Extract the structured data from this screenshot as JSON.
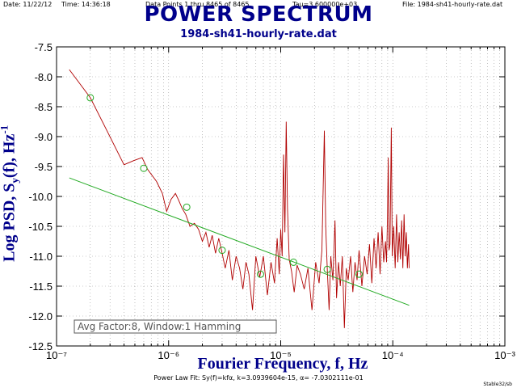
{
  "header": {
    "date": "Date: 11/22/12",
    "time": "Time: 14:36:18",
    "points": "Data Points 1 thru 8465 of 8465",
    "tau": "Tau=3.600000e+03",
    "file": "File: 1984-sh41-hourly-rate.dat"
  },
  "footer": {
    "power_law": "Power Law Fit: Sy(f)=kfα, k=3.0939604e-15, α= -7.0302111e-01",
    "credit": "Stable32/sb"
  },
  "colors": {
    "spectrum": "#b00000",
    "fit": "#22aa22",
    "markers": "#22aa22",
    "titles": "#00008b"
  },
  "chart_data": {
    "type": "line",
    "title": "POWER SPECTRUM",
    "subtitle": "1984-sh41-hourly-rate.dat",
    "xlabel": "Fourier Frequency, f, Hz",
    "ylabel_parts": {
      "main": "Log PSD, S",
      "sub": "y",
      "mid": "(f), Hz",
      "sup": "-1"
    },
    "x_scale": "log",
    "xlim": [
      1e-07,
      0.001
    ],
    "ylim": [
      -12.5,
      -7.5
    ],
    "x_tick_labels": [
      "10⁻⁷",
      "10⁻⁶",
      "10⁻⁵",
      "10⁻⁴",
      "10⁻³"
    ],
    "y_tick_labels": [
      "-7.5",
      "-8.0",
      "-8.5",
      "-9.0",
      "-9.5",
      "-10.0",
      "-10.5",
      "-11.0",
      "-11.5",
      "-12.0",
      "-12.5"
    ],
    "grid": true,
    "annotation": "Avg Factor:8, Window:1 Hamming",
    "series": [
      {
        "kind": "spectrum",
        "points": [
          [
            1.3e-07,
            -7.88
          ],
          [
            2e-07,
            -8.35
          ],
          [
            2.9e-07,
            -8.95
          ],
          [
            4e-07,
            -9.47
          ],
          [
            4.9e-07,
            -9.4
          ],
          [
            5.8e-07,
            -9.35
          ],
          [
            6.5e-07,
            -9.55
          ],
          [
            7.8e-07,
            -9.75
          ],
          [
            8.8e-07,
            -9.95
          ],
          [
            9.6e-07,
            -10.25
          ],
          [
            1.05e-06,
            -10.05
          ],
          [
            1.15e-06,
            -9.95
          ],
          [
            1.22e-06,
            -10.05
          ],
          [
            1.32e-06,
            -10.2
          ],
          [
            1.42e-06,
            -10.3
          ],
          [
            1.55e-06,
            -10.5
          ],
          [
            1.7e-06,
            -10.45
          ],
          [
            1.85e-06,
            -10.55
          ],
          [
            2e-06,
            -10.75
          ],
          [
            2.15e-06,
            -10.6
          ],
          [
            2.3e-06,
            -10.85
          ],
          [
            2.45e-06,
            -10.65
          ],
          [
            2.62e-06,
            -10.95
          ],
          [
            2.8e-06,
            -10.7
          ],
          [
            3e-06,
            -10.95
          ],
          [
            3.2e-06,
            -11.2
          ],
          [
            3.45e-06,
            -10.9
          ],
          [
            3.7e-06,
            -11.4
          ],
          [
            4e-06,
            -11.0
          ],
          [
            4.3e-06,
            -11.2
          ],
          [
            4.6e-06,
            -11.55
          ],
          [
            4.9e-06,
            -11.1
          ],
          [
            5.2e-06,
            -11.3
          ],
          [
            5.6e-06,
            -11.9
          ],
          [
            6e-06,
            -11.0
          ],
          [
            6.5e-06,
            -11.35
          ],
          [
            7e-06,
            -11.0
          ],
          [
            7.6e-06,
            -11.65
          ],
          [
            8.2e-06,
            -11.1
          ],
          [
            8.8e-06,
            -11.45
          ],
          [
            9.3e-06,
            -10.7
          ],
          [
            9.7e-06,
            -11.3
          ],
          [
            1e-05,
            -10.55
          ],
          [
            1.03e-05,
            -11.0
          ],
          [
            1.06e-05,
            -9.3
          ],
          [
            1.09e-05,
            -10.6
          ],
          [
            1.12e-05,
            -8.75
          ],
          [
            1.15e-05,
            -10.2
          ],
          [
            1.19e-05,
            -11.05
          ],
          [
            1.25e-05,
            -11.25
          ],
          [
            1.32e-05,
            -11.6
          ],
          [
            1.4e-05,
            -11.15
          ],
          [
            1.5e-05,
            -11.3
          ],
          [
            1.62e-05,
            -11.55
          ],
          [
            1.75e-05,
            -11.2
          ],
          [
            1.9e-05,
            -11.9
          ],
          [
            2.05e-05,
            -11.1
          ],
          [
            2.2e-05,
            -11.45
          ],
          [
            2.33e-05,
            -10.9
          ],
          [
            2.45e-05,
            -8.9
          ],
          [
            2.52e-05,
            -10.5
          ],
          [
            2.6e-05,
            -11.2
          ],
          [
            2.7e-05,
            -11.9
          ],
          [
            2.8e-05,
            -11.0
          ],
          [
            2.92e-05,
            -11.4
          ],
          [
            3.05e-05,
            -10.4
          ],
          [
            3.15e-05,
            -11.7
          ],
          [
            3.28e-05,
            -11.1
          ],
          [
            3.4e-05,
            -11.5
          ],
          [
            3.55e-05,
            -11.0
          ],
          [
            3.7e-05,
            -12.2
          ],
          [
            3.85e-05,
            -11.2
          ],
          [
            4e-05,
            -11.4
          ],
          [
            4.2e-05,
            -11.0
          ],
          [
            4.4e-05,
            -11.6
          ],
          [
            4.6e-05,
            -11.1
          ],
          [
            4.8e-05,
            -11.4
          ],
          [
            5e-05,
            -10.9
          ],
          [
            5.3e-05,
            -11.5
          ],
          [
            5.6e-05,
            -11.0
          ],
          [
            5.9e-05,
            -11.3
          ],
          [
            6.2e-05,
            -10.8
          ],
          [
            6.5e-05,
            -11.45
          ],
          [
            6.8e-05,
            -10.7
          ],
          [
            7.1e-05,
            -11.2
          ],
          [
            7.4e-05,
            -10.6
          ],
          [
            7.7e-05,
            -11.3
          ],
          [
            8e-05,
            -10.5
          ],
          [
            8.3e-05,
            -11.1
          ],
          [
            8.6e-05,
            -10.75
          ],
          [
            8.8e-05,
            -11.1
          ],
          [
            8.95e-05,
            -10.4
          ],
          [
            9.1e-05,
            -9.35
          ],
          [
            9.25e-05,
            -10.9
          ],
          [
            9.45e-05,
            -10.8
          ],
          [
            9.7e-05,
            -8.85
          ],
          [
            9.9e-05,
            -11.0
          ],
          [
            0.000102,
            -10.5
          ],
          [
            0.000105,
            -11.2
          ],
          [
            0.000108,
            -10.3
          ],
          [
            0.000111,
            -11.1
          ],
          [
            0.000114,
            -10.6
          ],
          [
            0.000117,
            -11.05
          ],
          [
            0.00012,
            -10.4
          ],
          [
            0.000123,
            -11.2
          ],
          [
            0.000126,
            -10.3
          ],
          [
            0.000129,
            -11.0
          ],
          [
            0.000132,
            -10.6
          ],
          [
            0.000135,
            -11.2
          ],
          [
            0.000138,
            -10.8
          ],
          [
            0.00014,
            -11.2
          ]
        ]
      },
      {
        "kind": "markers",
        "points": [
          [
            2e-07,
            -8.35
          ],
          [
            6e-07,
            -9.53
          ],
          [
            1.45e-06,
            -10.18
          ],
          [
            3e-06,
            -10.9
          ],
          [
            6.6e-06,
            -11.3
          ],
          [
            1.3e-05,
            -11.1
          ],
          [
            2.6e-05,
            -11.22
          ],
          [
            5e-05,
            -11.3
          ]
        ]
      },
      {
        "kind": "fit",
        "points": [
          [
            1.3e-07,
            -9.69
          ],
          [
            0.00014,
            -11.82
          ]
        ]
      }
    ]
  }
}
